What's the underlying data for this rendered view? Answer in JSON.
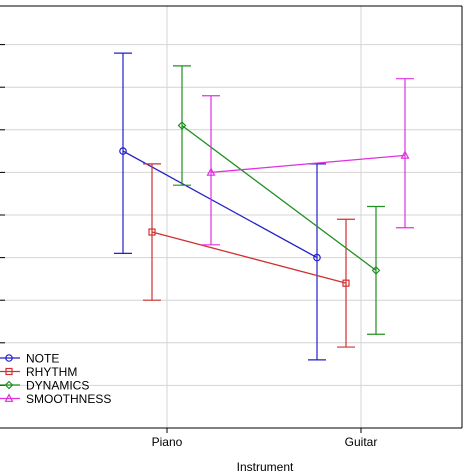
{
  "chart_data": {
    "type": "line",
    "title": "",
    "xlabel": "Instrument",
    "ylabel": "",
    "categories": [
      "Piano",
      "Guitar"
    ],
    "ylim": [
      0,
      10
    ],
    "grid": true,
    "legend_position": "bottom-left",
    "series": [
      {
        "name": "NOTE",
        "color": "#2020c8",
        "marker": "circle",
        "values": [
          6.5,
          4.0
        ],
        "upper": [
          8.8,
          6.2
        ],
        "lower": [
          4.1,
          1.6
        ]
      },
      {
        "name": "RHYTHM",
        "color": "#d03030",
        "marker": "square",
        "values": [
          4.6,
          3.4
        ],
        "upper": [
          6.2,
          4.9
        ],
        "lower": [
          3.0,
          1.9
        ]
      },
      {
        "name": "DYNAMICS",
        "color": "#209020",
        "marker": "diamond",
        "values": [
          7.1,
          3.7
        ],
        "upper": [
          8.5,
          5.2
        ],
        "lower": [
          5.7,
          2.2
        ]
      },
      {
        "name": "SMOOTHNESS",
        "color": "#e030e0",
        "marker": "triangle",
        "values": [
          6.0,
          6.4
        ],
        "upper": [
          7.8,
          8.2
        ],
        "lower": [
          4.3,
          4.7
        ]
      }
    ]
  }
}
